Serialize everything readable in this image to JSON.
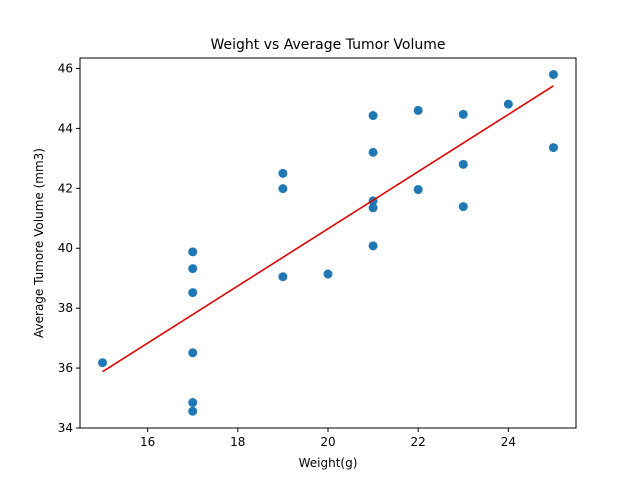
{
  "chart_data": {
    "type": "scatter",
    "title": "Weight vs Average Tumor Volume",
    "xlabel": "Weight(g)",
    "ylabel": "Average Tumore Volume (mm3)",
    "xlim": [
      14.5,
      25.5
    ],
    "ylim": [
      34,
      46.35
    ],
    "xticks": [
      16,
      18,
      20,
      22,
      24
    ],
    "yticks": [
      34,
      36,
      38,
      40,
      42,
      44,
      46
    ],
    "grid": false,
    "point_color": "#1f77b4",
    "line_color": "#e00000",
    "points": [
      {
        "x": 15,
        "y": 36.18
      },
      {
        "x": 17,
        "y": 39.88
      },
      {
        "x": 17,
        "y": 39.32
      },
      {
        "x": 17,
        "y": 38.52
      },
      {
        "x": 17,
        "y": 36.51
      },
      {
        "x": 17,
        "y": 34.85
      },
      {
        "x": 17,
        "y": 34.56
      },
      {
        "x": 19,
        "y": 42.5
      },
      {
        "x": 19,
        "y": 41.99
      },
      {
        "x": 19,
        "y": 39.05
      },
      {
        "x": 20,
        "y": 39.14
      },
      {
        "x": 21,
        "y": 44.43
      },
      {
        "x": 21,
        "y": 43.2
      },
      {
        "x": 21,
        "y": 41.58
      },
      {
        "x": 21,
        "y": 41.35
      },
      {
        "x": 21,
        "y": 40.08
      },
      {
        "x": 22,
        "y": 44.6
      },
      {
        "x": 22,
        "y": 41.96
      },
      {
        "x": 23,
        "y": 44.47
      },
      {
        "x": 23,
        "y": 42.8
      },
      {
        "x": 23,
        "y": 41.39
      },
      {
        "x": 24,
        "y": 44.81
      },
      {
        "x": 25,
        "y": 45.8
      },
      {
        "x": 25,
        "y": 43.36
      }
    ],
    "regression_line": {
      "x": [
        15,
        25
      ],
      "y": [
        35.88,
        45.42
      ]
    }
  }
}
